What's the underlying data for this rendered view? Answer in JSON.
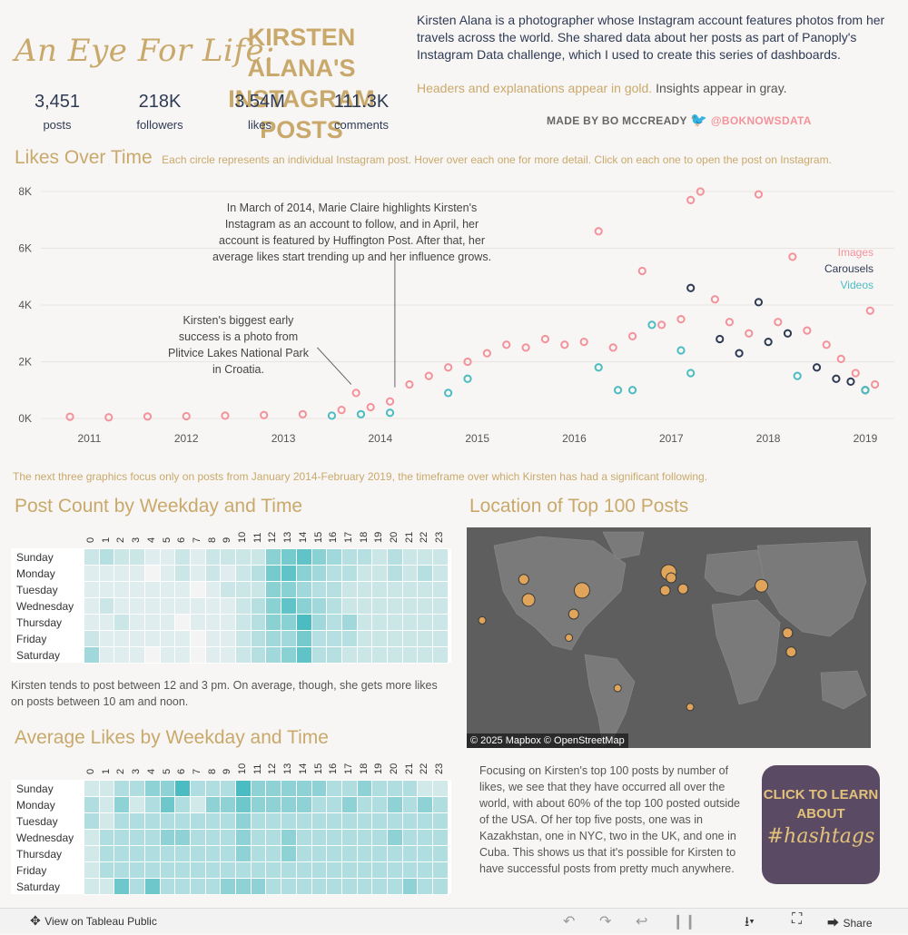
{
  "header": {
    "script_title": "An Eye For Life:",
    "caps_title": "KIRSTEN ALANA'S INSTAGRAM POSTS",
    "kpis": [
      {
        "value": "3,451",
        "label": "posts"
      },
      {
        "value": "218K",
        "label": "followers"
      },
      {
        "value": "3.54M",
        "label": "likes"
      },
      {
        "value": "111.3K",
        "label": "comments"
      }
    ],
    "intro": "Kirsten Alana is a photographer whose Instagram account features photos from her travels across the world. She shared data about her posts as part of Panoply's Instagram Data challenge, which I used to create this series of dashboards.",
    "note_gold": "Headers and explanations appear in gold.",
    "note_gray": "Insights appear in gray.",
    "madeby": "MADE BY BO MCCREADY",
    "madeby_handle": "@BOKNOWSDATA"
  },
  "likes_section": {
    "title": "Likes Over Time",
    "subtitle": "Each circle represents an individual Instagram post. Hover over each one for more detail. Click on each one to open the post on Instagram.",
    "annotation1": "In March of 2014, Marie Claire highlights Kirsten's Instagram as an account to follow, and in April, her account is featured by Huffington Post. After that, her average likes start trending up and her influence grows.",
    "annotation2": "Kirsten's biggest early success is a photo from Plitvice Lakes National Park in Croatia.",
    "legend": [
      {
        "label": "Images",
        "color": "#f3929a"
      },
      {
        "label": "Carousels",
        "color": "#2e3b55"
      },
      {
        "label": "Videos",
        "color": "#4bbcc1"
      }
    ]
  },
  "focus_note": "The next three graphics focus only on posts from January 2014-February 2019, the timeframe over which Kirsten has had a significant following.",
  "post_count": {
    "title": "Post Count by Weekday and Time",
    "insight": "Kirsten tends to post between 12 and 3 pm. On average, though, she gets more likes on posts between 10 am and noon."
  },
  "avg_likes": {
    "title": "Average Likes by Weekday and Time"
  },
  "location": {
    "title": "Location of Top 100 Posts",
    "attribution": "© 2025 Mapbox  © OpenStreetMap",
    "insight": "Focusing on Kirsten's top 100 posts by number of likes, we see that they have occurred all over the world, with about 60% of the top 100 posted outside of the USA. Of her top five posts, one was in Kazakhstan, one in NYC, two in the UK, and one in Cuba. This shows us that it's possible for Kirsten to have successful posts from pretty much anywhere."
  },
  "hashtag_button": {
    "line1": "CLICK TO LEARN",
    "line2": "ABOUT",
    "line3": "#hashtags"
  },
  "toolbar": {
    "view_label": "View on Tableau Public",
    "share_label": "Share"
  },
  "chart_data": [
    {
      "type": "scatter",
      "title": "Likes Over Time",
      "xlabel": "",
      "ylabel": "",
      "x_ticks": [
        "2011",
        "2012",
        "2013",
        "2014",
        "2015",
        "2016",
        "2017",
        "2018",
        "2019"
      ],
      "y_ticks": [
        "0K",
        "2K",
        "4K",
        "6K",
        "8K"
      ],
      "xlim": [
        2010.5,
        2019.3
      ],
      "ylim": [
        0,
        8000
      ],
      "series": [
        {
          "name": "Images",
          "color": "#f3929a",
          "points": [
            [
              2010.8,
              60
            ],
            [
              2011.2,
              40
            ],
            [
              2011.6,
              70
            ],
            [
              2012.0,
              80
            ],
            [
              2012.4,
              100
            ],
            [
              2012.8,
              120
            ],
            [
              2013.2,
              150
            ],
            [
              2013.6,
              300
            ],
            [
              2013.75,
              900
            ],
            [
              2013.9,
              400
            ],
            [
              2014.1,
              600
            ],
            [
              2014.3,
              1200
            ],
            [
              2014.5,
              1500
            ],
            [
              2014.7,
              1800
            ],
            [
              2014.9,
              2000
            ],
            [
              2015.1,
              2300
            ],
            [
              2015.3,
              2600
            ],
            [
              2015.5,
              2500
            ],
            [
              2015.7,
              2800
            ],
            [
              2015.9,
              2600
            ],
            [
              2016.1,
              2700
            ],
            [
              2016.25,
              6600
            ],
            [
              2016.4,
              2500
            ],
            [
              2016.6,
              2900
            ],
            [
              2016.7,
              5200
            ],
            [
              2016.9,
              3300
            ],
            [
              2017.1,
              3500
            ],
            [
              2017.2,
              7700
            ],
            [
              2017.3,
              8000
            ],
            [
              2017.45,
              4200
            ],
            [
              2017.6,
              3400
            ],
            [
              2017.8,
              3000
            ],
            [
              2017.9,
              7900
            ],
            [
              2018.1,
              3400
            ],
            [
              2018.25,
              5700
            ],
            [
              2018.4,
              3100
            ],
            [
              2018.6,
              2600
            ],
            [
              2018.75,
              2100
            ],
            [
              2018.9,
              1600
            ],
            [
              2019.05,
              3800
            ],
            [
              2019.1,
              1200
            ]
          ]
        },
        {
          "name": "Carousels",
          "color": "#2e3b55",
          "points": [
            [
              2017.2,
              4600
            ],
            [
              2017.5,
              2800
            ],
            [
              2017.7,
              2300
            ],
            [
              2017.9,
              4100
            ],
            [
              2018.0,
              2700
            ],
            [
              2018.2,
              3000
            ],
            [
              2018.5,
              1800
            ],
            [
              2018.7,
              1400
            ],
            [
              2018.85,
              1300
            ],
            [
              2019.0,
              1000
            ]
          ]
        },
        {
          "name": "Videos",
          "color": "#4bbcc1",
          "points": [
            [
              2013.5,
              100
            ],
            [
              2013.8,
              150
            ],
            [
              2014.1,
              200
            ],
            [
              2014.7,
              900
            ],
            [
              2014.9,
              1400
            ],
            [
              2016.25,
              1800
            ],
            [
              2016.45,
              1000
            ],
            [
              2016.6,
              1000
            ],
            [
              2016.8,
              3300
            ],
            [
              2017.1,
              2400
            ],
            [
              2017.2,
              1600
            ],
            [
              2018.3,
              1500
            ],
            [
              2019.0,
              1000
            ]
          ]
        }
      ]
    },
    {
      "type": "heatmap",
      "title": "Post Count by Weekday and Time",
      "columns": [
        "0",
        "1",
        "2",
        "3",
        "4",
        "5",
        "6",
        "7",
        "8",
        "9",
        "10",
        "11",
        "12",
        "13",
        "14",
        "15",
        "16",
        "17",
        "18",
        "19",
        "20",
        "21",
        "22",
        "23"
      ],
      "rows": [
        "Sunday",
        "Monday",
        "Tuesday",
        "Wednesday",
        "Thursday",
        "Friday",
        "Saturday"
      ],
      "values": [
        [
          2,
          3,
          2,
          2,
          1,
          1,
          2,
          1,
          2,
          2,
          2,
          2,
          5,
          6,
          7,
          5,
          4,
          3,
          3,
          2,
          3,
          2,
          2,
          2
        ],
        [
          1,
          1,
          1,
          1,
          0,
          1,
          2,
          1,
          2,
          1,
          2,
          3,
          6,
          7,
          5,
          4,
          3,
          3,
          2,
          2,
          3,
          2,
          3,
          2
        ],
        [
          1,
          1,
          1,
          1,
          1,
          1,
          1,
          0,
          1,
          2,
          2,
          2,
          5,
          5,
          4,
          3,
          3,
          2,
          2,
          2,
          2,
          2,
          2,
          2
        ],
        [
          1,
          2,
          1,
          1,
          1,
          1,
          1,
          1,
          1,
          1,
          2,
          3,
          5,
          7,
          5,
          4,
          3,
          2,
          2,
          2,
          2,
          2,
          2,
          2
        ],
        [
          1,
          1,
          2,
          1,
          1,
          1,
          0,
          1,
          1,
          1,
          2,
          3,
          5,
          5,
          8,
          4,
          3,
          4,
          2,
          2,
          2,
          2,
          2,
          2
        ],
        [
          2,
          1,
          1,
          1,
          1,
          1,
          1,
          0,
          1,
          1,
          2,
          3,
          4,
          4,
          6,
          3,
          3,
          3,
          2,
          2,
          2,
          2,
          2,
          2
        ],
        [
          4,
          1,
          1,
          1,
          0,
          1,
          1,
          0,
          1,
          1,
          2,
          3,
          4,
          5,
          7,
          3,
          3,
          2,
          2,
          2,
          2,
          2,
          2,
          2
        ]
      ],
      "max": 8
    },
    {
      "type": "heatmap",
      "title": "Average Likes by Weekday and Time",
      "columns": [
        "0",
        "1",
        "2",
        "3",
        "4",
        "5",
        "6",
        "7",
        "8",
        "9",
        "10",
        "11",
        "12",
        "13",
        "14",
        "15",
        "16",
        "17",
        "18",
        "19",
        "20",
        "21",
        "22",
        "23"
      ],
      "rows": [
        "Sunday",
        "Monday",
        "Tuesday",
        "Wednesday",
        "Thursday",
        "Friday",
        "Saturday"
      ],
      "values": [
        [
          1,
          1,
          2,
          2,
          3,
          3,
          5,
          2,
          2,
          2,
          5,
          3,
          3,
          3,
          3,
          3,
          2,
          2,
          3,
          2,
          2,
          2,
          1,
          1
        ],
        [
          2,
          1,
          3,
          1,
          2,
          4,
          2,
          1,
          3,
          3,
          4,
          3,
          3,
          3,
          3,
          2,
          2,
          3,
          2,
          2,
          3,
          2,
          3,
          2
        ],
        [
          2,
          1,
          2,
          2,
          2,
          2,
          2,
          2,
          2,
          2,
          3,
          2,
          2,
          2,
          2,
          2,
          2,
          2,
          2,
          2,
          2,
          2,
          2,
          2
        ],
        [
          1,
          2,
          2,
          2,
          2,
          3,
          3,
          2,
          2,
          2,
          3,
          2,
          2,
          3,
          2,
          2,
          2,
          2,
          2,
          2,
          3,
          2,
          2,
          2
        ],
        [
          1,
          2,
          2,
          2,
          2,
          2,
          2,
          2,
          2,
          2,
          3,
          2,
          2,
          3,
          2,
          2,
          2,
          2,
          2,
          2,
          2,
          2,
          2,
          2
        ],
        [
          1,
          2,
          2,
          2,
          2,
          2,
          2,
          2,
          2,
          2,
          2,
          2,
          2,
          2,
          2,
          2,
          2,
          2,
          2,
          2,
          2,
          2,
          2,
          2
        ],
        [
          1,
          1,
          4,
          2,
          4,
          2,
          2,
          2,
          2,
          3,
          3,
          3,
          2,
          2,
          2,
          2,
          2,
          2,
          2,
          2,
          2,
          3,
          2,
          2
        ]
      ],
      "max": 5
    },
    {
      "type": "scatter",
      "title": "Location of Top 100 Posts",
      "series": [
        {
          "name": "Top 100 posts",
          "color": "#e0a55a",
          "points": [
            [
              -122,
              47,
              2
            ],
            [
              -118,
              34,
              3
            ],
            [
              -73,
              40,
              4
            ],
            [
              -80,
              25,
              2
            ],
            [
              -84,
              10,
              1
            ],
            [
              -0.1,
              51.5,
              4
            ],
            [
              2,
              48,
              2
            ],
            [
              12,
              41,
              2
            ],
            [
              -3,
              40,
              2
            ],
            [
              78,
              43,
              3
            ],
            [
              100,
              13,
              2
            ],
            [
              103,
              1,
              2
            ],
            [
              -157,
              21,
              1
            ],
            [
              18,
              -34,
              1
            ],
            [
              -43,
              -22,
              1
            ]
          ]
        }
      ]
    }
  ]
}
